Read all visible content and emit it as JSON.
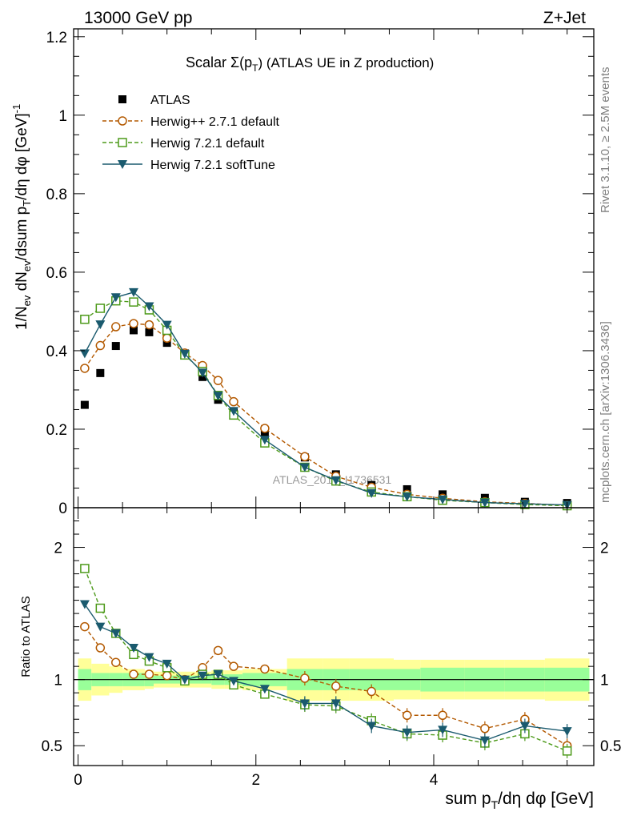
{
  "header": {
    "left": "13000 GeV pp",
    "right": "Z+Jet"
  },
  "side_labels": {
    "rivet": "Rivet 3.1.10, ≥ 2.5M events",
    "mcplots": "mcplots.cern.ch [arXiv:1306.3436]"
  },
  "watermark": "ATLAS_2019_I1736531",
  "colors": {
    "atlas": "#000000",
    "herwigpp": "#b35900",
    "herwig72def": "#4d9a1a",
    "herwig72soft": "#1a5a6e",
    "band_inner": "#99ff99",
    "band_outer": "#ffff99"
  },
  "chart_data": [
    {
      "type": "scatter",
      "title": "Scalar Σ(pT) (ATLAS UE in Z production)",
      "title_main": "Scalar Σ(p",
      "title_sub": "T",
      "title_rest": ") (ATLAS UE in Z production)",
      "ylabel": "1/Nev dNev/dsum pT/dη dφ [GeV]-1",
      "xlim": [
        -0.05,
        5.8
      ],
      "ylim": [
        0,
        1.22
      ],
      "xticks": [
        0,
        2,
        4
      ],
      "yticks": [
        0,
        0.2,
        0.4,
        0.6,
        0.8,
        1,
        1.2
      ],
      "ytick_labels": [
        "0",
        "0.2",
        "0.4",
        "0.6",
        "0.8",
        "1",
        "1.2"
      ],
      "x": [
        0.075,
        0.25,
        0.425,
        0.625,
        0.8,
        1.0,
        1.2,
        1.4,
        1.575,
        1.75,
        2.1,
        2.55,
        2.9,
        3.3,
        3.7,
        4.1,
        4.575,
        5.025,
        5.5
      ],
      "series": [
        {
          "name": "ATLAS",
          "key": "atlas",
          "marker": "square",
          "values": [
            0.262,
            0.343,
            0.412,
            0.452,
            0.447,
            0.42,
            0.393,
            0.333,
            0.275,
            0.246,
            0.186,
            0.128,
            0.085,
            0.058,
            0.047,
            0.034,
            0.025,
            0.015,
            0.012
          ]
        },
        {
          "name": "Herwig++ 2.7.1 default",
          "key": "herwigpp",
          "marker": "circle",
          "dash": "5,3",
          "values": [
            0.355,
            0.413,
            0.461,
            0.469,
            0.466,
            0.432,
            0.394,
            0.362,
            0.324,
            0.27,
            0.202,
            0.13,
            0.08,
            0.052,
            0.034,
            0.024,
            0.015,
            0.011,
            0.006
          ]
        },
        {
          "name": "Herwig 7.2.1 default",
          "key": "herwig72def",
          "marker": "open-square",
          "dash": "5,3",
          "values": [
            0.48,
            0.508,
            0.527,
            0.524,
            0.504,
            0.452,
            0.389,
            0.347,
            0.286,
            0.236,
            0.165,
            0.103,
            0.068,
            0.04,
            0.028,
            0.019,
            0.013,
            0.008,
            0.005
          ]
        },
        {
          "name": "Herwig 7.2.1 softTune",
          "key": "herwig72soft",
          "marker": "triangle-down",
          "values": [
            0.393,
            0.467,
            0.536,
            0.549,
            0.513,
            0.466,
            0.392,
            0.344,
            0.285,
            0.246,
            0.173,
            0.103,
            0.07,
            0.037,
            0.028,
            0.021,
            0.013,
            0.01,
            0.007
          ]
        }
      ],
      "legend_position": "top-left"
    },
    {
      "type": "scatter",
      "ylabel": "Ratio to ATLAS",
      "xlabel": "sum pT/dη dφ [GeV]",
      "xlabel_parts": [
        "sum p",
        "T",
        "/dη dφ [GeV]"
      ],
      "xlim": [
        -0.05,
        5.8
      ],
      "ylim": [
        0.35,
        2.3
      ],
      "xticks": [
        0,
        2,
        4
      ],
      "yticks": [
        0.5,
        1,
        2
      ],
      "ytick_labels": [
        "0.5",
        "1",
        "2"
      ],
      "x": [
        0.075,
        0.25,
        0.425,
        0.625,
        0.8,
        1.0,
        1.2,
        1.4,
        1.575,
        1.75,
        2.1,
        2.55,
        2.9,
        3.3,
        3.7,
        4.1,
        4.575,
        5.025,
        5.5
      ],
      "bin_edges": [
        0.0,
        0.15,
        0.35,
        0.5,
        0.75,
        0.85,
        1.15,
        1.25,
        1.5,
        1.65,
        1.85,
        2.35,
        2.75,
        3.05,
        3.55,
        3.85,
        4.35,
        4.8,
        5.25,
        5.75
      ],
      "band_inner": [
        0.08,
        0.05,
        0.05,
        0.05,
        0.05,
        0.03,
        0.03,
        0.03,
        0.04,
        0.04,
        0.05,
        0.08,
        0.08,
        0.08,
        0.08,
        0.09,
        0.09,
        0.09,
        0.09
      ],
      "band_outer": [
        0.16,
        0.12,
        0.1,
        0.08,
        0.07,
        0.06,
        0.06,
        0.06,
        0.07,
        0.07,
        0.08,
        0.16,
        0.16,
        0.16,
        0.15,
        0.15,
        0.15,
        0.15,
        0.16
      ],
      "series": [
        {
          "name": "Herwig++ 2.7.1 default",
          "key": "herwigpp",
          "marker": "circle",
          "dash": "5,3",
          "values": [
            1.4,
            1.24,
            1.13,
            1.04,
            1.04,
            1.03,
            1.0,
            1.09,
            1.22,
            1.1,
            1.08,
            1.01,
            0.95,
            0.91,
            0.73,
            0.73,
            0.63,
            0.7,
            0.5
          ]
        },
        {
          "name": "Herwig 7.2.1 default",
          "key": "herwig72def",
          "marker": "open-square",
          "dash": "5,3",
          "values": [
            1.84,
            1.54,
            1.35,
            1.19,
            1.14,
            1.09,
            0.99,
            1.04,
            1.04,
            0.96,
            0.89,
            0.81,
            0.8,
            0.69,
            0.59,
            0.58,
            0.52,
            0.59,
            0.46
          ]
        },
        {
          "name": "Herwig 7.2.1 softTune",
          "key": "herwig72soft",
          "marker": "triangle-down",
          "values": [
            1.57,
            1.4,
            1.35,
            1.24,
            1.17,
            1.12,
            1.0,
            1.03,
            1.04,
            0.99,
            0.93,
            0.82,
            0.82,
            0.65,
            0.6,
            0.62,
            0.54,
            0.65,
            0.61
          ]
        }
      ]
    }
  ]
}
